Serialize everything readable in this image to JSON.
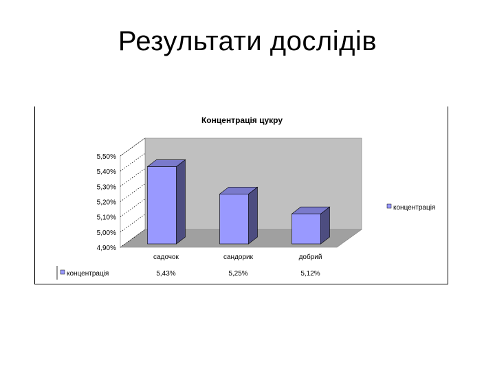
{
  "slide": {
    "title": "Результати дослідів"
  },
  "chart_data": {
    "type": "bar",
    "title": "Концентрація цукру",
    "categories": [
      "садочок",
      "сандорик",
      "добрий"
    ],
    "series": [
      {
        "name": "концентрація",
        "values": [
          5.43,
          5.25,
          5.12
        ],
        "value_labels": [
          "5,43%",
          "5,25%",
          "5,12%"
        ],
        "color": "#9999ff"
      }
    ],
    "y_ticks": [
      "5,50%",
      "5,40%",
      "5,30%",
      "5,20%",
      "5,10%",
      "5,00%",
      "4,90%"
    ],
    "ylim": [
      4.9,
      5.5
    ],
    "xlabel": "",
    "ylabel": "",
    "three_d": true,
    "grid": false,
    "legend": "right",
    "data_table": true,
    "colors": {
      "wall": "#c0c0c0",
      "floor": "#a0a0a0",
      "bar_front": "#9999ff",
      "bar_side": "#4d4d80",
      "bar_top": "#7a7acc"
    }
  }
}
